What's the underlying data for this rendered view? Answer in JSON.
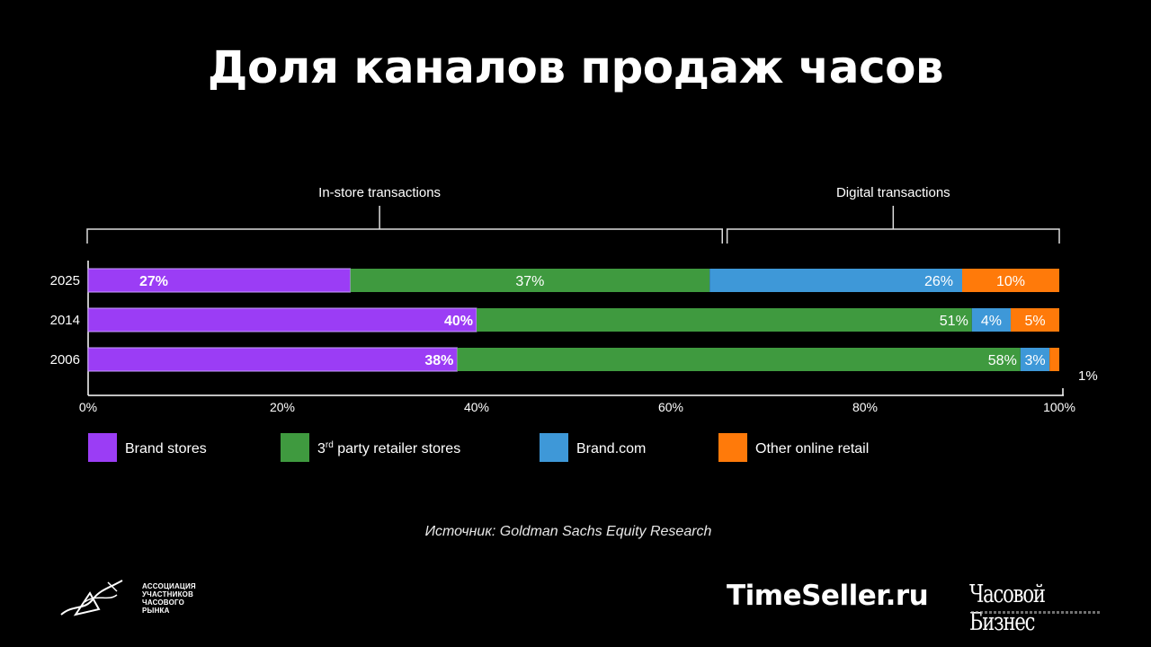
{
  "page": {
    "title": "Доля каналов продаж часов",
    "source": "Источник: Goldman Sachs Equity Research",
    "association_logo_text": "АССОЦИАЦИЯ\nУЧАСТНИКОВ\nЧАСОВОГО\nРЫНКА",
    "brand_timeseller": "TimeSeller.ru",
    "brand_chasovoy": "Часовой Бизнес"
  },
  "chart_data": {
    "type": "bar",
    "orientation": "horizontal",
    "stacked": true,
    "categories": [
      "2025",
      "2014",
      "2006"
    ],
    "series": [
      {
        "name": "Brand stores",
        "color": "#9b3df5",
        "values": [
          27,
          40,
          38
        ],
        "labels": [
          "27%",
          "40%",
          "38%"
        ]
      },
      {
        "name": "3rd party retailer stores",
        "color": "#3f9a3f",
        "values": [
          37,
          51,
          58
        ],
        "labels": [
          "37%",
          "51%",
          "58%"
        ]
      },
      {
        "name": "Brand.com",
        "color": "#3e98d8",
        "values": [
          26,
          4,
          3
        ],
        "labels": [
          "26%",
          "4%",
          "3%"
        ]
      },
      {
        "name": "Other online retail",
        "color": "#ff7a0a",
        "values": [
          10,
          5,
          1
        ],
        "labels": [
          "10%",
          "5%",
          "1%"
        ]
      }
    ],
    "xlim": [
      0,
      100
    ],
    "x_ticks": [
      "0%",
      "20%",
      "40%",
      "60%",
      "80%",
      "100%"
    ],
    "groups": [
      {
        "label": "In-store transactions",
        "range": [
          0,
          65.3
        ]
      },
      {
        "label": "Digital transactions",
        "range": [
          65.8,
          100
        ]
      }
    ],
    "legend": {
      "position": "bottom",
      "items": [
        {
          "name": "Brand stores",
          "color": "#9b3df5"
        },
        {
          "name": "3",
          "sup": "rd",
          "rest": " party retailer stores",
          "color": "#3f9a3f"
        },
        {
          "name": "Brand.com",
          "color": "#3e98d8"
        },
        {
          "name": "Other online retail",
          "color": "#ff7a0a"
        }
      ]
    },
    "grid": false
  }
}
